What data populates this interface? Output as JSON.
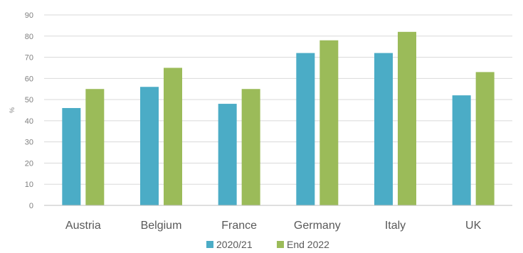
{
  "chart_data": {
    "type": "bar",
    "categories": [
      "Austria",
      "Belgium",
      "France",
      "Germany",
      "Italy",
      "UK"
    ],
    "series": [
      {
        "name": "2020/21",
        "color": "#4bacc6",
        "values": [
          46,
          56,
          48,
          72,
          72,
          52
        ]
      },
      {
        "name": "End 2022",
        "color": "#9bbb59",
        "values": [
          55,
          65,
          55,
          78,
          82,
          63
        ]
      }
    ],
    "title": "",
    "xlabel": "",
    "ylabel": "%",
    "ylim": [
      0,
      90
    ],
    "yticks": [
      0,
      10,
      20,
      30,
      40,
      50,
      60,
      70,
      80,
      90
    ],
    "grid": true,
    "legend_position": "bottom"
  }
}
